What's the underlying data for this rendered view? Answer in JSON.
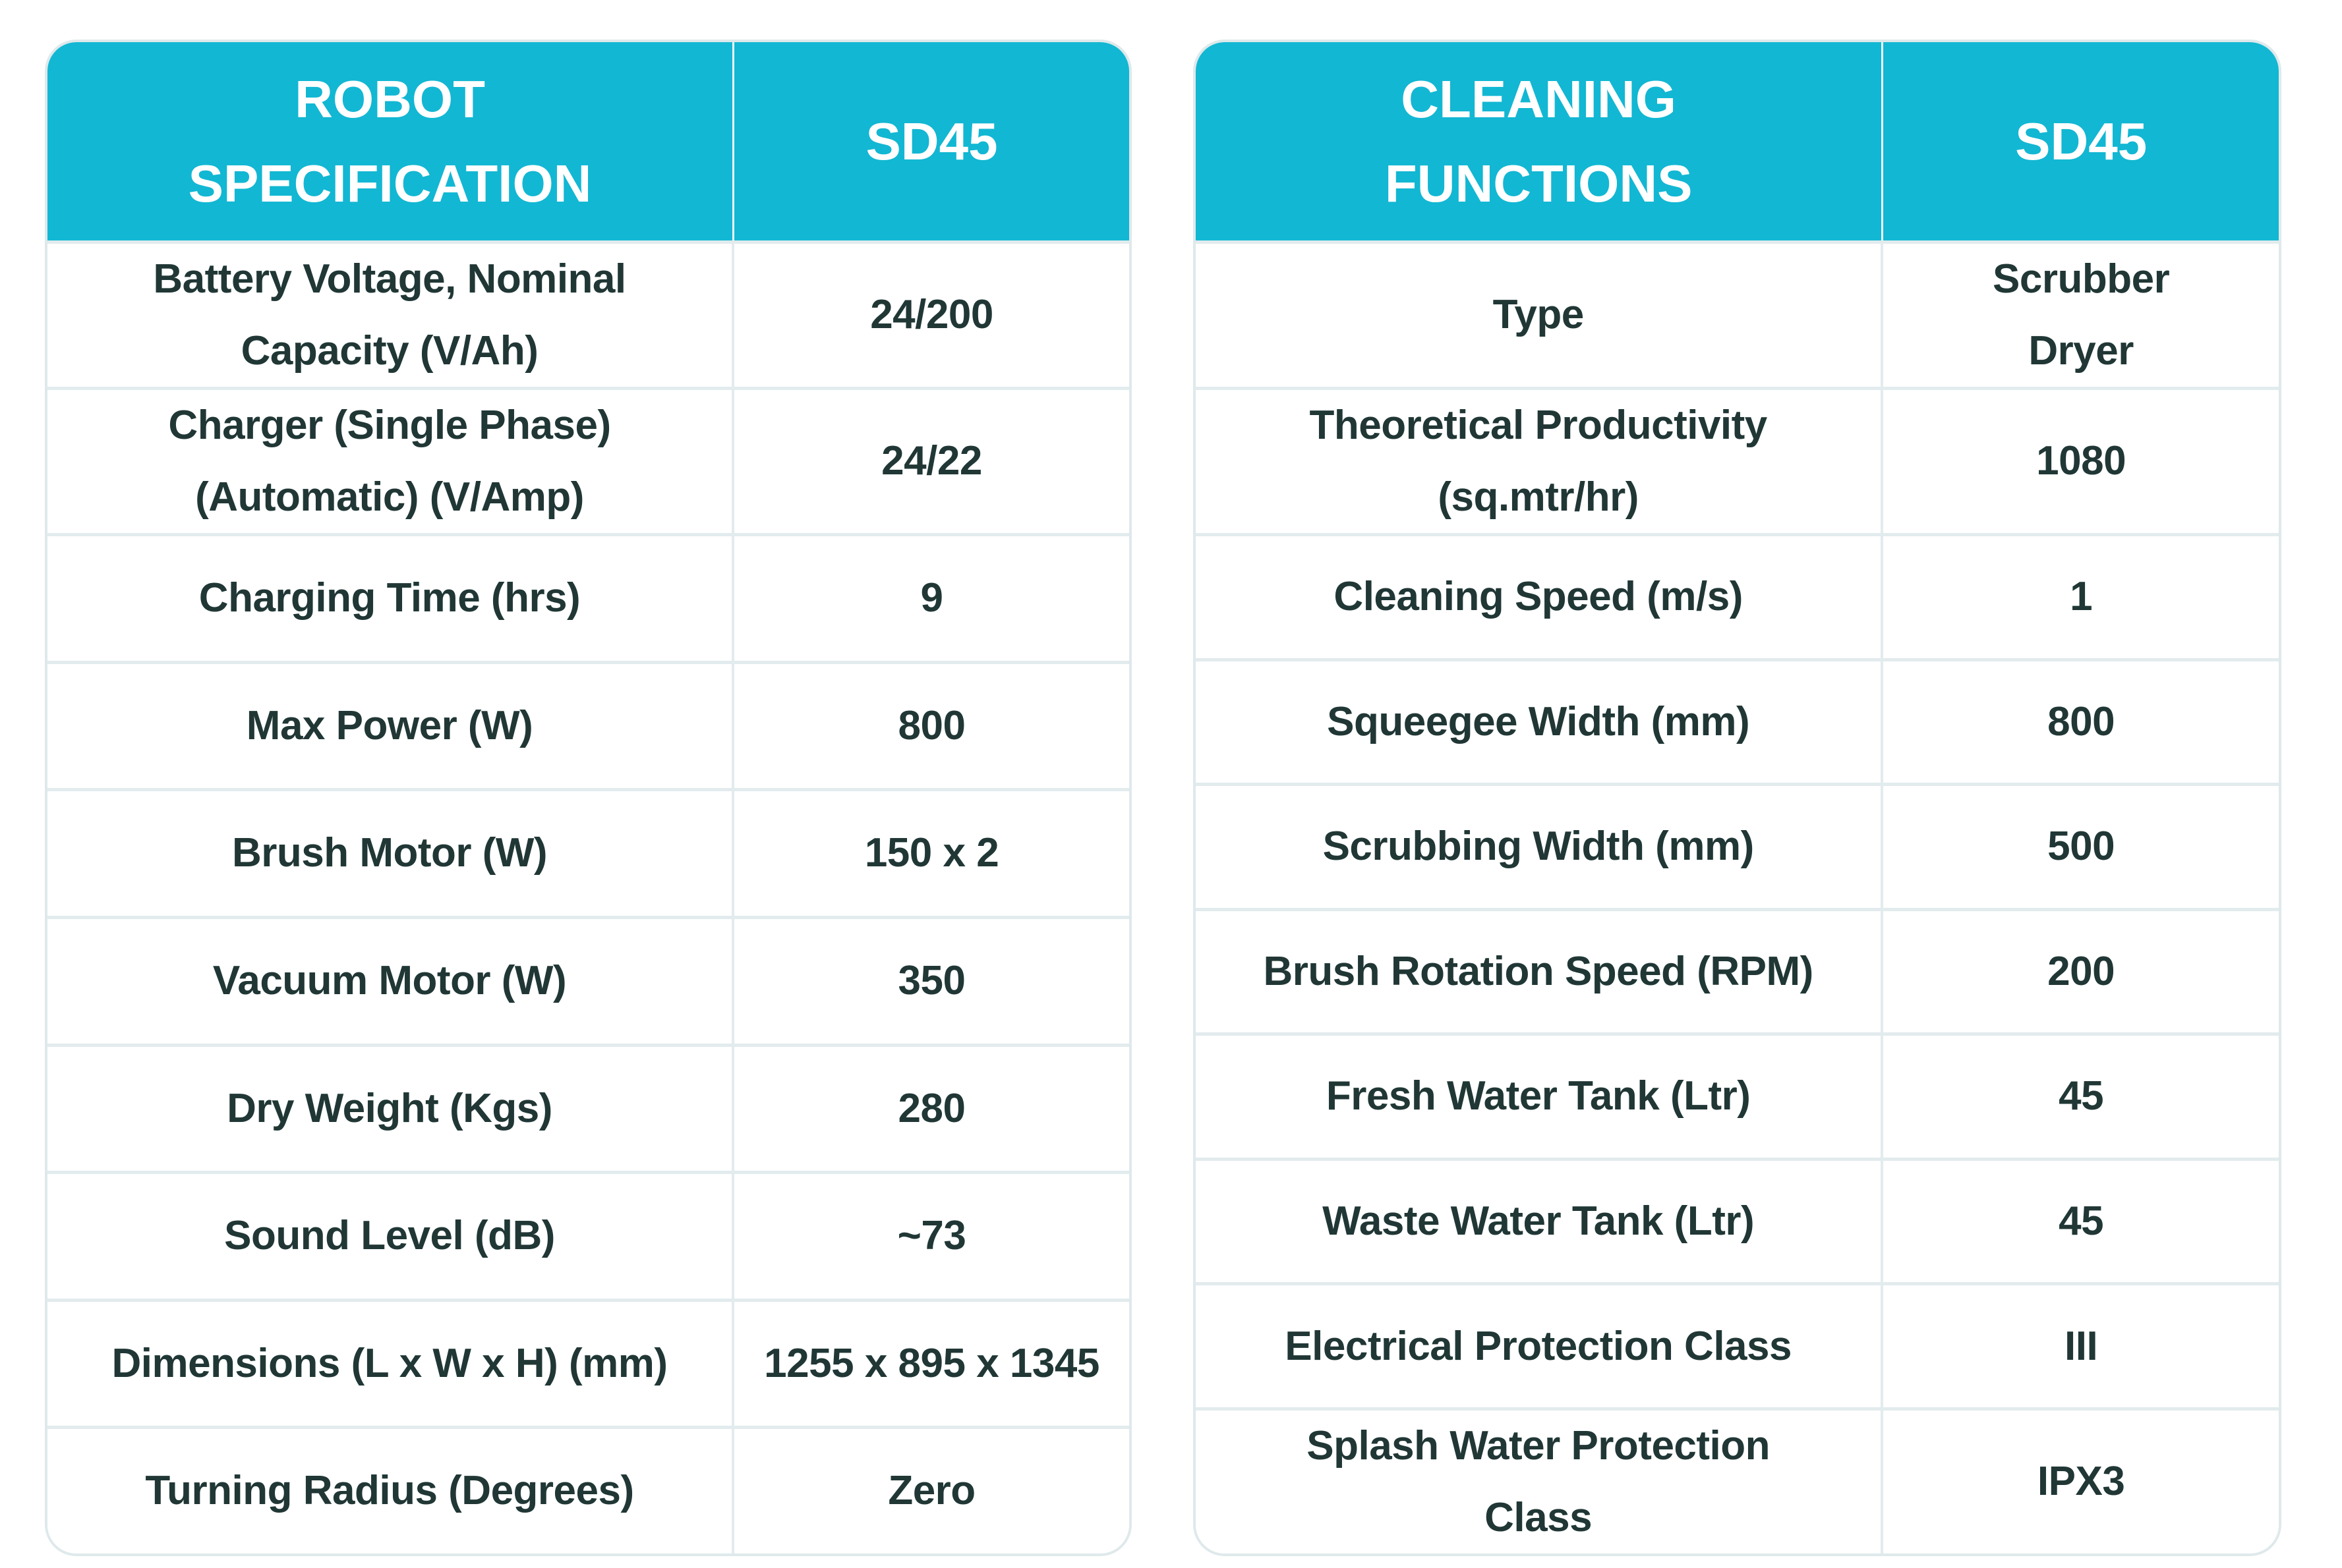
{
  "theme": {
    "accent_color": "#12b7d3",
    "header_text_color": "#ffffff",
    "body_text_color": "#203735",
    "divider_color": "#e2ebed",
    "background_color": "#ffffff"
  },
  "tables": [
    {
      "id": "robot-specification",
      "header": {
        "title": "ROBOT\nSPECIFICATION",
        "model": "SD45"
      },
      "rows": [
        {
          "label": "Battery Voltage, Nominal\nCapacity (V/Ah)",
          "value": "24/200"
        },
        {
          "label": "Charger (Single Phase)\n(Automatic) (V/Amp)",
          "value": "24/22"
        },
        {
          "label": "Charging Time (hrs)",
          "value": "9"
        },
        {
          "label": "Max Power (W)",
          "value": "800"
        },
        {
          "label": "Brush Motor (W)",
          "value": "150 x 2"
        },
        {
          "label": "Vacuum Motor (W)",
          "value": "350"
        },
        {
          "label": "Dry Weight (Kgs)",
          "value": "280"
        },
        {
          "label": "Sound Level (dB)",
          "value": "~73"
        },
        {
          "label": "Dimensions (L x W x H) (mm)",
          "value": "1255 x 895 x 1345"
        },
        {
          "label": "Turning Radius (Degrees)",
          "value": "Zero"
        }
      ]
    },
    {
      "id": "cleaning-functions",
      "header": {
        "title": "CLEANING\nFUNCTIONS",
        "model": "SD45"
      },
      "rows": [
        {
          "label": "Type",
          "value": "Scrubber\nDryer"
        },
        {
          "label": "Theoretical Productivity\n(sq.mtr/hr)",
          "value": "1080"
        },
        {
          "label": "Cleaning Speed (m/s)",
          "value": "1"
        },
        {
          "label": "Squeegee  Width (mm)",
          "value": "800"
        },
        {
          "label": "Scrubbing Width (mm)",
          "value": "500"
        },
        {
          "label": "Brush Rotation Speed (RPM)",
          "value": "200"
        },
        {
          "label": "Fresh Water Tank (Ltr)",
          "value": "45"
        },
        {
          "label": "Waste Water Tank (Ltr)",
          "value": "45"
        },
        {
          "label": "Electrical Protection Class",
          "value": "III"
        },
        {
          "label": "Splash Water  Protection\nClass",
          "value": "IPX3"
        }
      ]
    }
  ]
}
